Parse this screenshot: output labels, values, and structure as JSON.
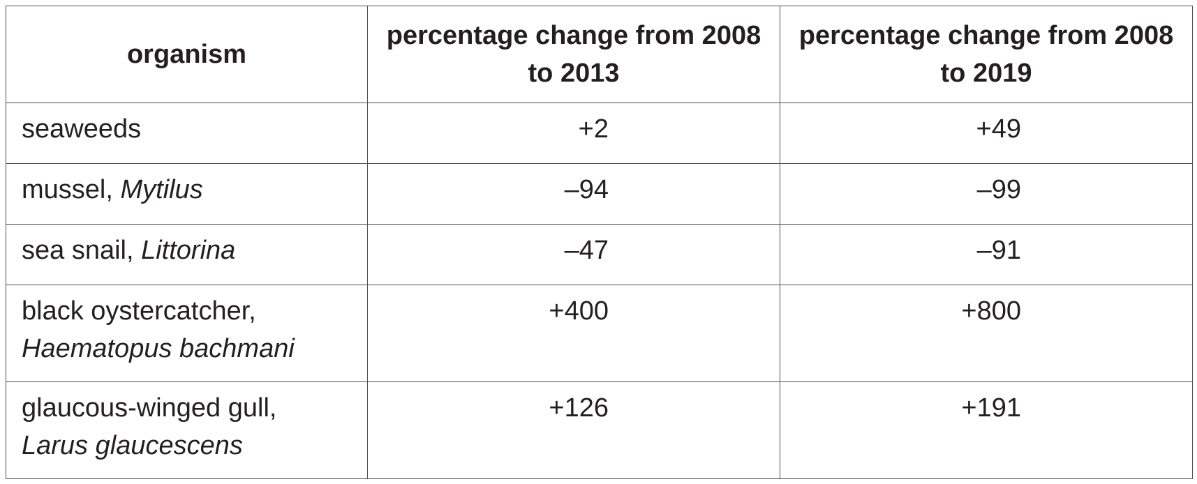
{
  "table": {
    "header": [
      "organism",
      "percentage change from 2008 to 2013",
      "percentage change from 2008 to 2019"
    ],
    "rows": [
      {
        "organism": {
          "name": "seaweeds"
        },
        "change_2013": "+2",
        "change_2019": "+49"
      },
      {
        "organism": {
          "name": "mussel,",
          "scientific": "Mytilus",
          "wrap": false
        },
        "change_2013": "–94",
        "change_2019": "–99"
      },
      {
        "organism": {
          "name": "sea snail,",
          "scientific": "Littorina",
          "wrap": false
        },
        "change_2013": "–47",
        "change_2019": "–91"
      },
      {
        "organism": {
          "name": "black oystercatcher,",
          "scientific": "Haematopus bachmani",
          "wrap": true
        },
        "change_2013": "+400",
        "change_2019": "+800"
      },
      {
        "organism": {
          "name": "glaucous-winged gull,",
          "scientific": "Larus glaucescens",
          "wrap": true
        },
        "change_2013": "+126",
        "change_2019": "+191"
      }
    ]
  }
}
